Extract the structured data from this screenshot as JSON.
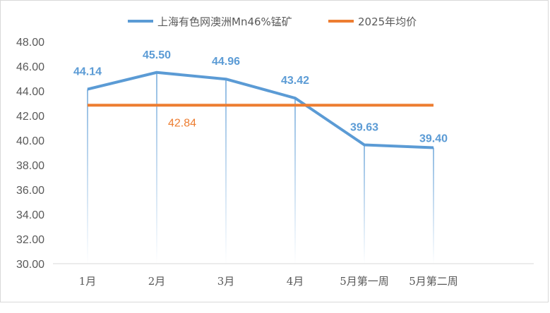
{
  "chart_data": {
    "type": "line",
    "categories": [
      "1月",
      "2月",
      "3月",
      "4月",
      "5月第一周",
      "5月第二周"
    ],
    "ylim": [
      30,
      48
    ],
    "yticks": [
      "30.00",
      "32.00",
      "34.00",
      "36.00",
      "38.00",
      "40.00",
      "42.00",
      "44.00",
      "46.00",
      "48.00"
    ],
    "grid": false,
    "legend_position": "top",
    "series": [
      {
        "name": "上海有色网澳洲Mn46%锰矿",
        "color": "#5b9bd5",
        "values": [
          44.14,
          45.5,
          44.96,
          43.42,
          39.63,
          39.4
        ],
        "labels": [
          "44.14",
          "45.50",
          "44.96",
          "43.42",
          "39.63",
          "39.40"
        ]
      },
      {
        "name": "2025年均价",
        "color": "#ed7d31",
        "values": [
          42.84,
          42.84,
          42.84,
          42.84,
          42.84,
          42.84
        ],
        "label": "42.84"
      }
    ]
  }
}
